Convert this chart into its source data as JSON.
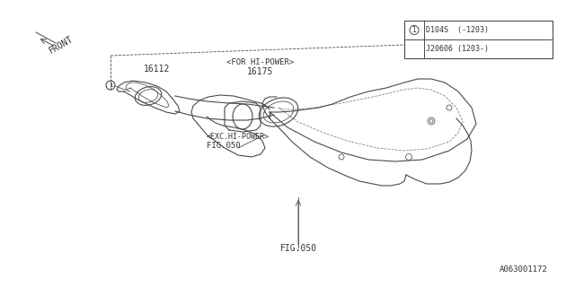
{
  "bg_color": "#ffffff",
  "line_color": "#555555",
  "text_color": "#333333",
  "title_text": "",
  "fig_size": [
    6.4,
    3.2
  ],
  "dpi": 100,
  "labels": {
    "fig050_top": "FIG.050",
    "fig050_mid": "FIG.050",
    "fig050_mid_sub": "<EXC.HI-POWER>",
    "part16112": "16112",
    "part16175": "16175",
    "part16175_sub": "<FOR HI-POWER>",
    "front": "FRONT",
    "diagram_id": "A063001172",
    "circle_label_1": "1",
    "table_row1": "D104S  (-1203)",
    "table_row2": "J20606 (1203-)"
  },
  "colors": {
    "line": "#4a4a4a",
    "fill": "#ffffff",
    "box": "#000000"
  }
}
